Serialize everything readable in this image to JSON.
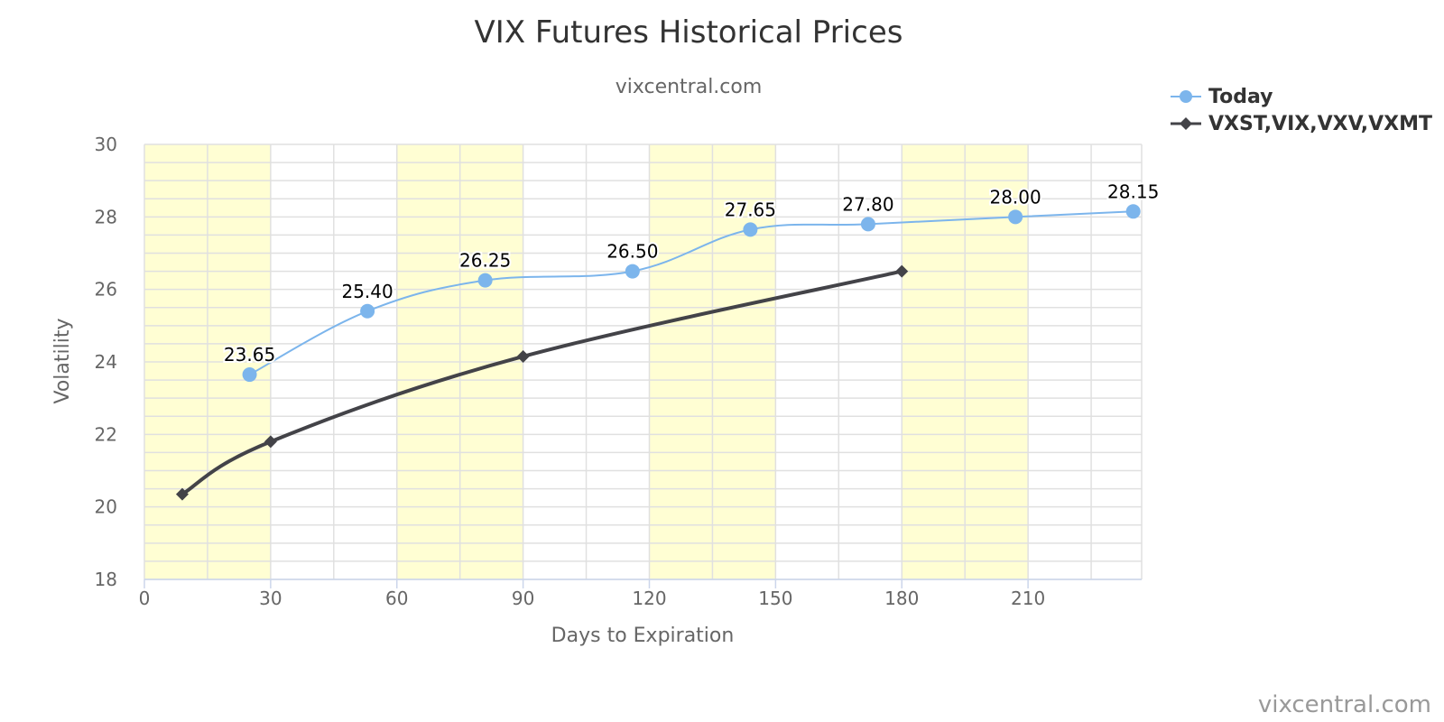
{
  "chart_data": {
    "type": "line",
    "title": "VIX Futures Historical Prices",
    "subtitle": "vixcentral.com",
    "xlabel": "Days to Expiration",
    "ylabel": "Volatility",
    "xlim": [
      0,
      237
    ],
    "ylim": [
      18,
      30
    ],
    "x_ticks": [
      0,
      30,
      60,
      90,
      120,
      150,
      180,
      210
    ],
    "y_ticks": [
      18,
      20,
      22,
      24,
      26,
      28,
      30
    ],
    "shaded_bands": [
      [
        0,
        30
      ],
      [
        60,
        90
      ],
      [
        120,
        150
      ],
      [
        180,
        210
      ]
    ],
    "grid": true,
    "legend_position": "top-right",
    "series": [
      {
        "name": "Today",
        "color": "#7cb5ec",
        "marker": "circle",
        "x": [
          25,
          53,
          81,
          116,
          144,
          172,
          207,
          235
        ],
        "y": [
          23.65,
          25.4,
          26.25,
          26.5,
          27.65,
          27.8,
          28.0,
          28.15
        ],
        "labels": [
          "23.65",
          "25.40",
          "26.25",
          "26.50",
          "27.65",
          "27.80",
          "28.00",
          "28.15"
        ]
      },
      {
        "name": "VXST,VIX,VXV,VXMT",
        "color": "#434348",
        "marker": "diamond",
        "x": [
          9,
          30,
          90,
          180
        ],
        "y": [
          20.35,
          21.8,
          24.15,
          26.5
        ]
      }
    ],
    "watermark": "vixcentral.com"
  }
}
